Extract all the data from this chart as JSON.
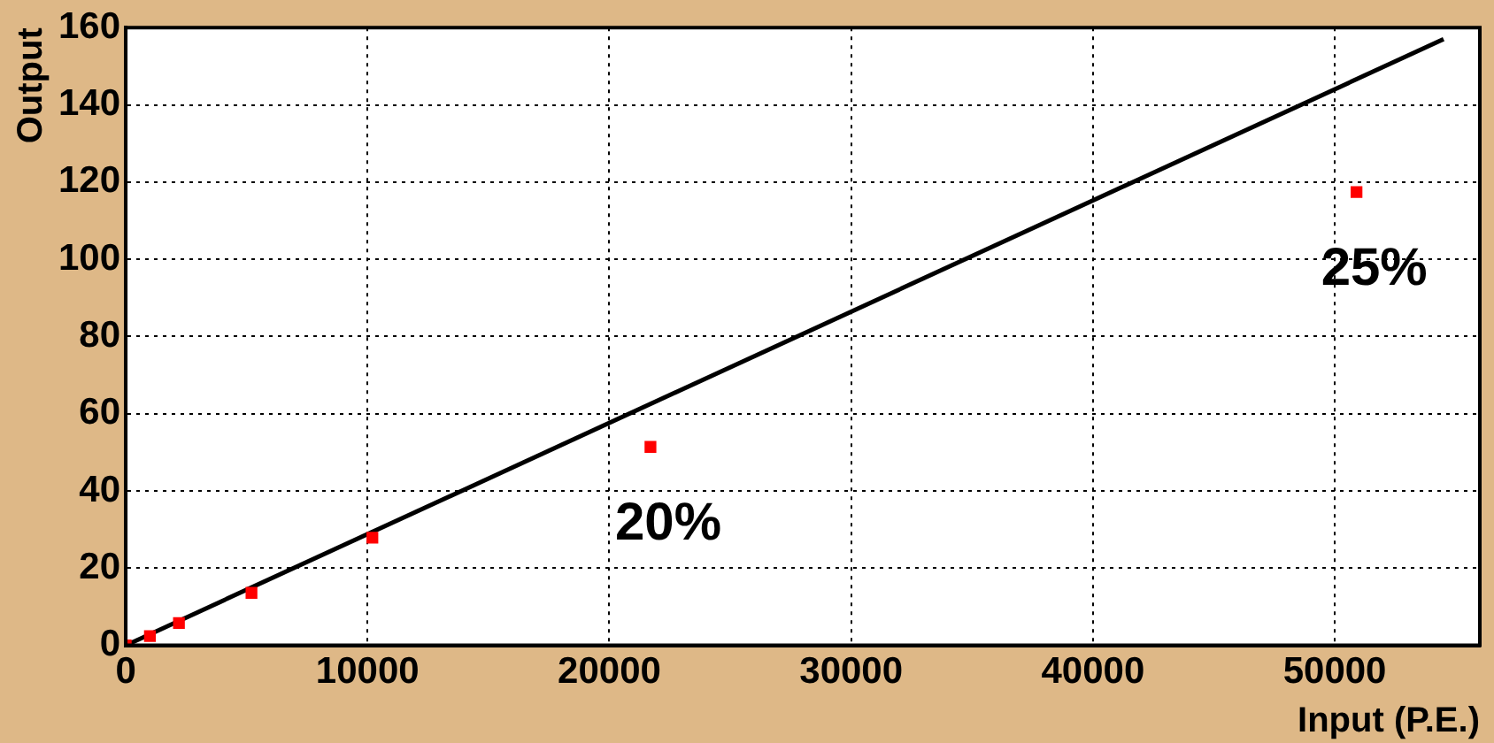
{
  "chart_data": {
    "type": "scatter",
    "xlabel": "Input (P.E.)",
    "ylabel": "Output",
    "xlim": [
      0,
      56000
    ],
    "ylim": [
      0,
      160
    ],
    "xticks": [
      0,
      10000,
      20000,
      30000,
      40000,
      50000
    ],
    "yticks": [
      0,
      20,
      40,
      60,
      80,
      100,
      120,
      140,
      160
    ],
    "grid": true,
    "legend": false,
    "marker": "square",
    "x": [
      0,
      1000,
      2200,
      5200,
      10200,
      21700,
      50900
    ],
    "series": [
      {
        "type": "scatter",
        "color": "#ff0000",
        "values": [
          0,
          2.4,
          5.8,
          13.6,
          27.9,
          51.4,
          117.4
        ]
      },
      {
        "type": "line",
        "color": "#000000",
        "marker": "none",
        "x": [
          0,
          54500
        ],
        "values": [
          0,
          157
        ]
      }
    ],
    "annotations": [
      {
        "text": "20%",
        "x": 21700,
        "y": 51.4
      },
      {
        "text": "25%",
        "x": 50900,
        "y": 117.4
      }
    ]
  }
}
